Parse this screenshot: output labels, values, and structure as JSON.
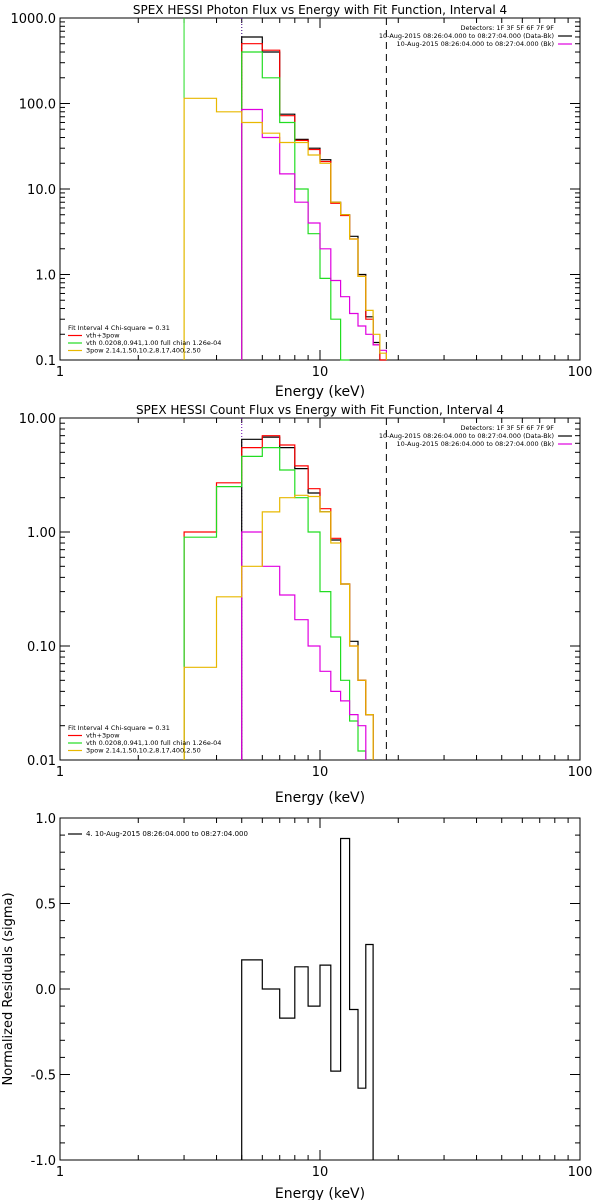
{
  "colors": {
    "black": "#000000",
    "red": "#ff0000",
    "green": "#22dd22",
    "magenta": "#e000e0",
    "gold": "#e8b800",
    "purple_dotted": "#6600aa"
  },
  "chart_data": [
    {
      "type": "line",
      "title": "SPEX HESSI Photon Flux vs Energy with Fit Function, Interval 4",
      "xlabel": "Energy (keV)",
      "ylabel": "",
      "xscale": "log",
      "yscale": "log",
      "xlim": [
        1,
        100
      ],
      "ylim": [
        0.1,
        1000
      ],
      "xticks": [
        "1",
        "10",
        "100"
      ],
      "yticks": [
        "0.1",
        "1.0",
        "10.0",
        "100.0",
        "1000.0"
      ],
      "vlines": [
        {
          "x": 3.0,
          "color": "green",
          "style": "solid"
        },
        {
          "x": 5.0,
          "color": "green",
          "style": "dotted"
        },
        {
          "x": 5.0,
          "color": "purple_dotted",
          "style": "dotted"
        },
        {
          "x": 18.0,
          "color": "black",
          "style": "dashed"
        }
      ],
      "header": [
        "Detectors: 1F 3F 5F 6F 7F 9F",
        "10-Aug-2015 08:26:04.000 to 08:27:04.000 (Data-Bk)",
        "10-Aug-2015 08:26:04.000 to 08:27:04.000 (Bk)"
      ],
      "header_colors": [
        "",
        "black",
        "magenta"
      ],
      "legend": [
        "Fit Interval 4   Chi-square = 0.31",
        "vth+3pow",
        "vth 0.0208,0.941,1.00  full chian 1.26e-04",
        "3pow 2.14,1.50,10.2,8.17,400,2.50"
      ],
      "legend_colors": [
        "",
        "red",
        "green",
        "gold"
      ],
      "edges": [
        3,
        4,
        5,
        6,
        7,
        8,
        9,
        10,
        11,
        12,
        13,
        14,
        15,
        16,
        17,
        18
      ],
      "series": [
        {
          "color": "black",
          "values": [
            null,
            null,
            600,
            400,
            75,
            38,
            30,
            22,
            7,
            5,
            2.8,
            1.0,
            0.32,
            0.16,
            0.1
          ]
        },
        {
          "color": "red",
          "values": [
            null,
            null,
            500,
            420,
            72,
            37,
            29,
            21,
            6.8,
            4.9,
            2.6,
            0.95,
            0.3,
            0.15,
            0.1
          ]
        },
        {
          "color": "green",
          "values": [
            null,
            null,
            400,
            200,
            60,
            10,
            3,
            0.9,
            0.3,
            0.1,
            null,
            null,
            null,
            null,
            null
          ]
        },
        {
          "color": "magenta",
          "values": [
            null,
            null,
            85,
            40,
            15,
            7,
            4,
            2,
            0.85,
            0.55,
            0.35,
            0.25,
            0.2,
            0.15,
            0.13
          ]
        },
        {
          "color": "gold",
          "values": [
            115,
            80,
            60,
            45,
            35,
            35,
            25,
            20,
            7,
            5,
            2.6,
            0.95,
            0.38,
            0.2,
            0.12
          ]
        }
      ]
    },
    {
      "type": "line",
      "title": "SPEX HESSI Count Flux vs Energy with Fit Function, Interval 4",
      "xlabel": "Energy (keV)",
      "ylabel": "",
      "xscale": "log",
      "yscale": "log",
      "xlim": [
        1,
        100
      ],
      "ylim": [
        0.01,
        10
      ],
      "xticks": [
        "1",
        "10",
        "100"
      ],
      "yticks": [
        "0.01",
        "0.10",
        "1.00",
        "10.00"
      ],
      "vlines": [
        {
          "x": 5.0,
          "color": "purple_dotted",
          "style": "dotted"
        },
        {
          "x": 18.0,
          "color": "black",
          "style": "dashed"
        }
      ],
      "header": [
        "Detectors: 1F 3F 5F 6F 7F 9F",
        "10-Aug-2015 08:26:04.000 to 08:27:04.000 (Data-Bk)",
        "10-Aug-2015 08:26:04.000 to 08:27:04.000 (Bk)"
      ],
      "header_colors": [
        "",
        "black",
        "magenta"
      ],
      "legend": [
        "Fit Interval 4   Chi-square = 0.31",
        "vth+3pow",
        "vth 0.0208,0.941,1.00  full chian 1.26e-04",
        "3pow 2.14,1.50,10.2,8.17,400,2.50"
      ],
      "legend_colors": [
        "",
        "red",
        "green",
        "gold"
      ],
      "edges": [
        3,
        4,
        5,
        6,
        7,
        8,
        9,
        10,
        11,
        12,
        13,
        14,
        15,
        16,
        17,
        18
      ],
      "series": [
        {
          "color": "black",
          "values": [
            null,
            null,
            6.5,
            6.8,
            5.5,
            3.6,
            2.2,
            1.5,
            0.85,
            0.35,
            0.11,
            0.05,
            0.025,
            null,
            null
          ]
        },
        {
          "color": "red",
          "values": [
            1.0,
            2.7,
            5.5,
            7.0,
            5.8,
            3.8,
            2.4,
            1.6,
            0.88,
            0.35,
            0.1,
            0.05,
            0.025,
            null,
            null
          ]
        },
        {
          "color": "green",
          "values": [
            0.9,
            2.5,
            4.6,
            5.5,
            3.5,
            2.0,
            1.0,
            0.3,
            0.12,
            0.05,
            0.022,
            0.012,
            null,
            null,
            null
          ]
        },
        {
          "color": "magenta",
          "values": [
            null,
            null,
            1.0,
            0.5,
            0.28,
            0.17,
            0.1,
            0.06,
            0.04,
            0.033,
            0.025,
            0.02,
            null,
            null,
            null
          ]
        },
        {
          "color": "gold",
          "values": [
            0.065,
            0.27,
            0.5,
            1.5,
            2.0,
            2.1,
            2.05,
            1.5,
            0.8,
            0.35,
            0.1,
            0.05,
            0.025,
            null,
            null
          ]
        }
      ]
    },
    {
      "type": "line",
      "title": "",
      "xlabel": "Energy (keV)",
      "ylabel": "Normalized Residuals (sigma)",
      "xscale": "log",
      "yscale": "linear",
      "xlim": [
        1,
        100
      ],
      "ylim": [
        -1.0,
        1.0
      ],
      "xticks": [
        "1",
        "10",
        "100"
      ],
      "yticks": [
        "-1.0",
        "-0.5",
        "0.0",
        "0.5",
        "1.0"
      ],
      "legend": [
        "4. 10-Aug-2015 08:26:04.000 to 08:27:04.000"
      ],
      "legend_colors": [
        "black"
      ],
      "edges": [
        5,
        6,
        7,
        8,
        9,
        10,
        11,
        12,
        13,
        14,
        15,
        16,
        17,
        18
      ],
      "series": [
        {
          "color": "black",
          "values": [
            0.17,
            0.0,
            -0.17,
            0.13,
            -0.1,
            0.14,
            -0.48,
            0.88,
            -0.12,
            -0.58,
            0.26,
            null,
            null
          ]
        }
      ]
    }
  ]
}
